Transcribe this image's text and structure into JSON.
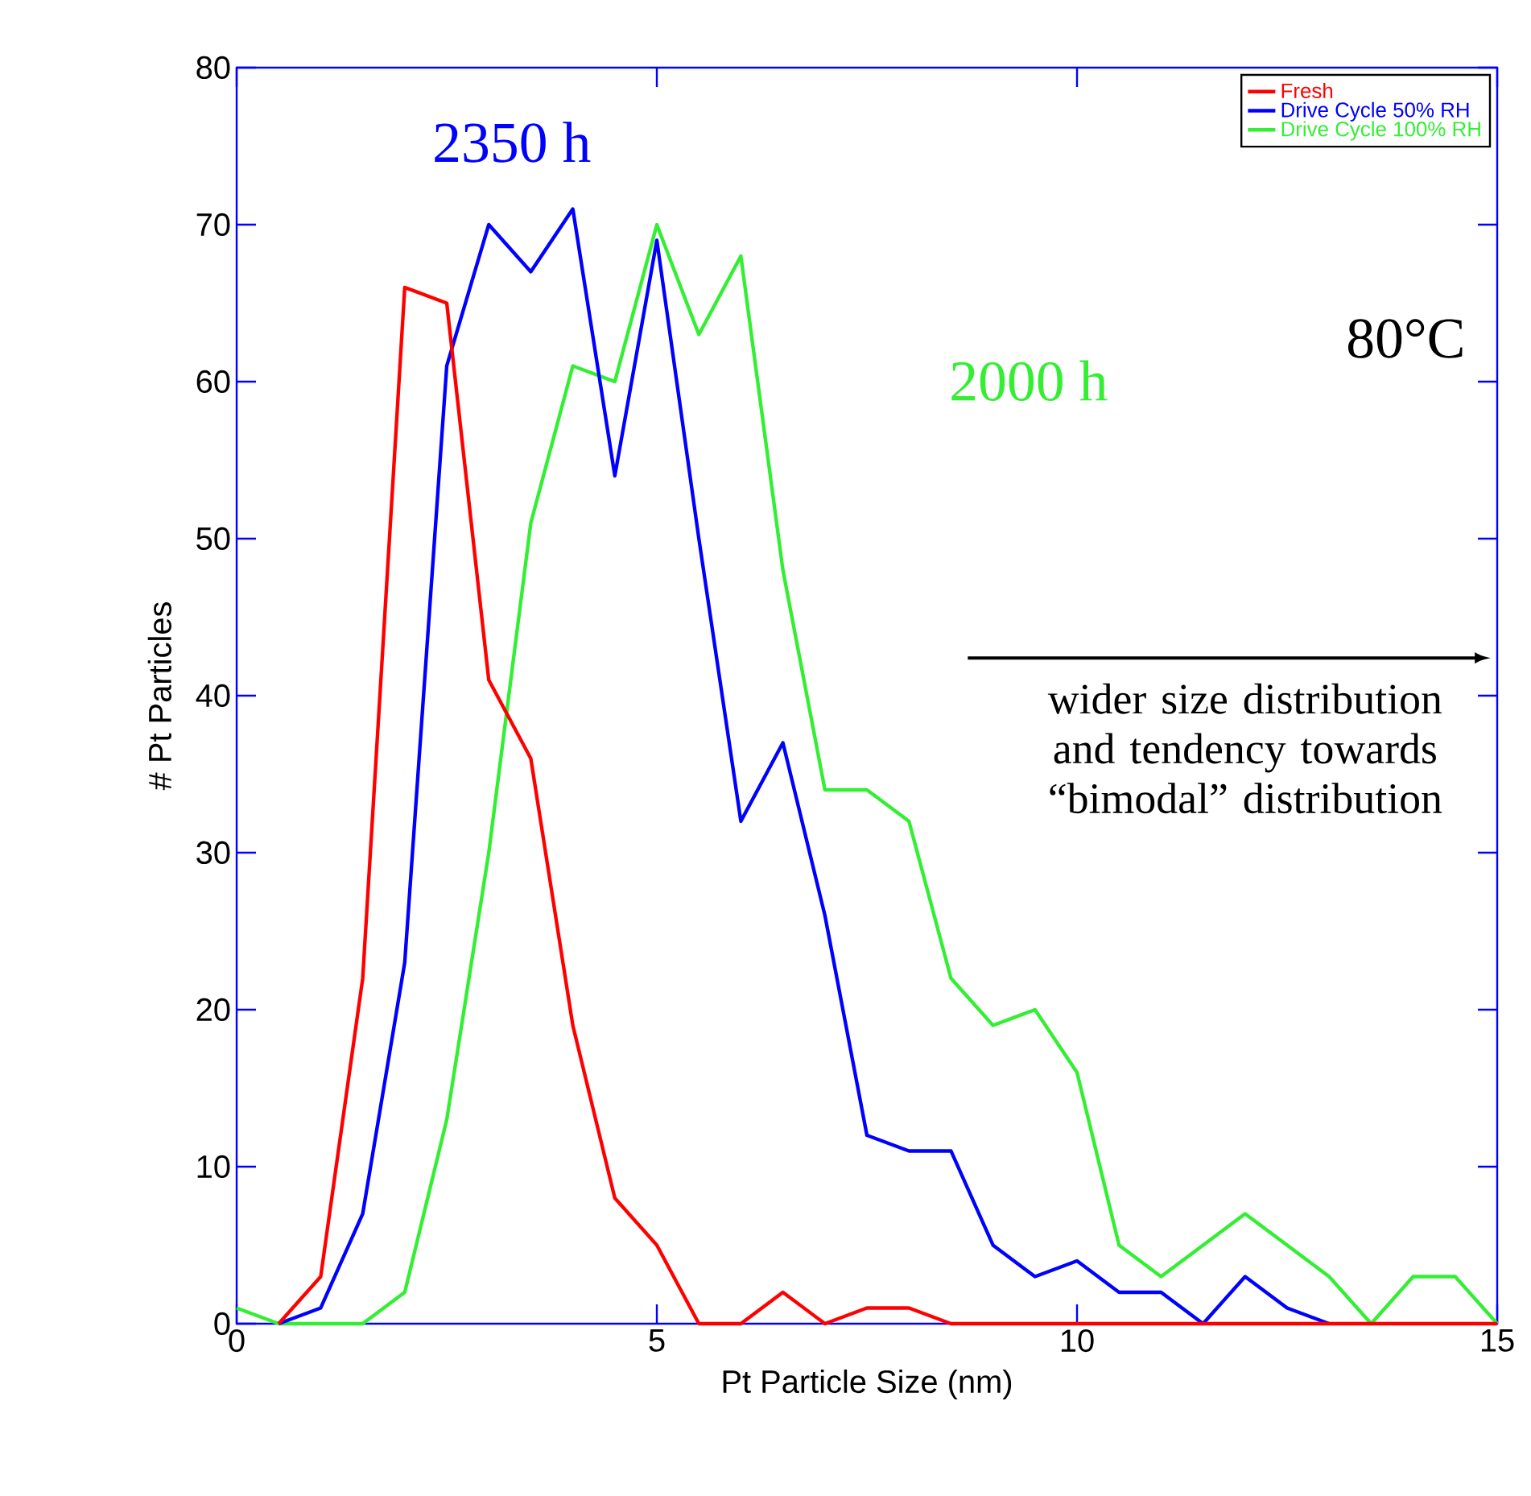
{
  "chart_data": {
    "type": "line",
    "xlabel": "Pt Particle Size (nm)",
    "ylabel": "# Pt Particles",
    "xlim": [
      0,
      15
    ],
    "ylim": [
      0,
      80
    ],
    "xticks": [
      0,
      5,
      10,
      15
    ],
    "yticks": [
      0,
      10,
      20,
      30,
      40,
      50,
      60,
      70,
      80
    ],
    "grid": false,
    "legend": "top right",
    "marker": "none",
    "line_style": "solid",
    "x": [
      0,
      0.5,
      1,
      1.5,
      2,
      2.5,
      3,
      3.5,
      4,
      4.5,
      5,
      5.5,
      6,
      6.5,
      7,
      7.5,
      8,
      8.5,
      9,
      9.5,
      10,
      10.5,
      11,
      11.5,
      12,
      12.5,
      13,
      13.5,
      14,
      14.5,
      15
    ],
    "series": [
      {
        "name": "Fresh",
        "color": "#ff0000",
        "x": [
          0.5,
          1,
          1.5,
          2,
          2.5,
          3,
          3.5,
          4,
          4.5,
          5,
          5.5,
          6,
          6.5,
          7,
          7.5,
          8,
          8.5,
          9,
          9.5,
          10,
          10.5,
          11,
          11.5,
          12,
          12.5,
          13,
          13.5,
          14,
          14.5,
          15
        ],
        "values": [
          0,
          3,
          22,
          66,
          65,
          41,
          36,
          19,
          8,
          5,
          0,
          0,
          2,
          0,
          1,
          1,
          0,
          0,
          0,
          0,
          0,
          0,
          0,
          0,
          0,
          0,
          0,
          0,
          0,
          0
        ]
      },
      {
        "name": "Drive Cycle 50% RH",
        "color": "#0000ff",
        "x": [
          0.5,
          1,
          1.5,
          2,
          2.5,
          3,
          3.5,
          4,
          4.5,
          5,
          5.5,
          6,
          6.5,
          7,
          7.5,
          8,
          8.5,
          9,
          9.5,
          10,
          10.5,
          11,
          11.5,
          12,
          12.5,
          13
        ],
        "values": [
          0,
          1,
          7,
          23,
          61,
          70,
          67,
          71,
          54,
          69,
          50,
          32,
          37,
          26,
          12,
          11,
          11,
          5,
          3,
          4,
          2,
          2,
          0,
          3,
          1,
          0
        ]
      },
      {
        "name": "Drive Cycle 100% RH",
        "color": "#33ee33",
        "values": [
          1,
          0,
          0,
          0,
          2,
          13,
          30,
          51,
          61,
          60,
          70,
          63,
          68,
          48,
          34,
          34,
          32,
          22,
          19,
          20,
          16,
          5,
          3,
          5,
          7,
          5,
          3,
          0,
          3,
          3,
          0
        ]
      }
    ],
    "annotations": [
      "2350 h",
      "2000 h",
      "80°C",
      "wider size distribution and tendency towards “bimodal” distribution"
    ]
  }
}
